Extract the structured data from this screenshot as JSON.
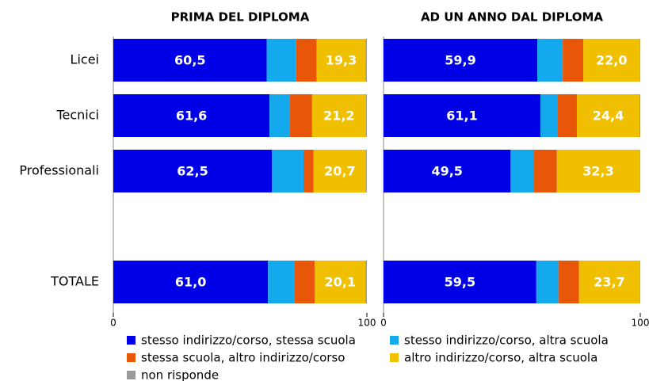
{
  "chart_data": [
    {
      "type": "bar",
      "orientation": "horizontal",
      "stacked": true,
      "title": "PRIMA DEL DIPLOMA",
      "categories": [
        "Licei",
        "Tecnici",
        "Professionali",
        null,
        "TOTALE"
      ],
      "xlim": [
        0,
        100
      ],
      "xticks": [
        0,
        100
      ],
      "series": [
        {
          "name": "stesso indirizzo/corso, stessa scuola",
          "color": "#0000e6",
          "values": [
            60.5,
            61.6,
            62.5,
            null,
            61.0
          ],
          "value_labels": [
            "60,5",
            "61,6",
            "62,5",
            null,
            "61,0"
          ]
        },
        {
          "name": "stesso indirizzo/corso, altra scuola",
          "color": "#14a8ec",
          "values": [
            11.6,
            8.1,
            12.5,
            null,
            10.3
          ]
        },
        {
          "name": "stessa scuola, altro indirizzo/corso",
          "color": "#e8560a",
          "values": [
            8.1,
            8.7,
            4.0,
            null,
            8.1
          ]
        },
        {
          "name": "altro indirizzo/corso, altra scuola",
          "color": "#f0c000",
          "values": [
            19.3,
            21.2,
            20.7,
            null,
            20.1
          ],
          "value_labels": [
            "19,3",
            "21,2",
            "20,7",
            null,
            "20,1"
          ]
        },
        {
          "name": "non risponde",
          "color": "#9a9a9a",
          "values": [
            0.5,
            0.4,
            0.3,
            null,
            0.5
          ]
        }
      ]
    },
    {
      "type": "bar",
      "orientation": "horizontal",
      "stacked": true,
      "title": "AD UN ANNO DAL DIPLOMA",
      "categories": [
        "Licei",
        "Tecnici",
        "Professionali",
        null,
        "TOTALE"
      ],
      "xlim": [
        0,
        100
      ],
      "xticks": [
        0,
        100
      ],
      "series": [
        {
          "name": "stesso indirizzo/corso, stessa scuola",
          "color": "#0000e6",
          "values": [
            59.9,
            61.1,
            49.5,
            null,
            59.5
          ],
          "value_labels": [
            "59,9",
            "61,1",
            "49,5",
            null,
            "59,5"
          ]
        },
        {
          "name": "stesso indirizzo/corso, altra scuola",
          "color": "#14a8ec",
          "values": [
            9.9,
            6.8,
            9.0,
            null,
            8.6
          ]
        },
        {
          "name": "stessa scuola, altro indirizzo/corso",
          "color": "#e8560a",
          "values": [
            8.0,
            7.4,
            9.0,
            null,
            8.0
          ]
        },
        {
          "name": "altro indirizzo/corso, altra scuola",
          "color": "#f0c000",
          "values": [
            22.0,
            24.4,
            32.3,
            null,
            23.7
          ],
          "value_labels": [
            "22,0",
            "24,4",
            "32,3",
            null,
            "23,7"
          ]
        },
        {
          "name": "non risponde",
          "color": "#9a9a9a",
          "values": [
            0.2,
            0.3,
            0.2,
            null,
            0.2
          ]
        }
      ]
    }
  ]
}
